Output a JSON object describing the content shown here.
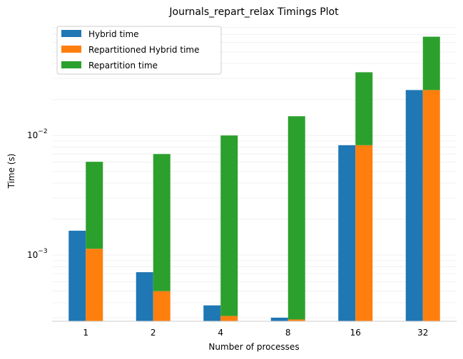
{
  "chart_data": {
    "type": "bar",
    "title": "Journals_repart_relax Timings Plot",
    "xlabel": "Number of processes",
    "ylabel": "Time (s)",
    "yscale": "log",
    "ylim": [
      0.00028,
      0.09
    ],
    "grid": "horizontal minor lines",
    "legend_position": "top-left",
    "categories": [
      "1",
      "2",
      "4",
      "8",
      "16",
      "32"
    ],
    "y_tick_labels": [
      {
        "value": 0.001,
        "base": "10",
        "exp": "−3"
      },
      {
        "value": 0.01,
        "base": "10",
        "exp": "−2"
      }
    ],
    "series": [
      {
        "name": "Hybrid time",
        "color": "#1f77b4",
        "values": [
          0.0016,
          0.00072,
          0.00038,
          0.0003,
          0.0083,
          0.024
        ]
      },
      {
        "name": "Repartitioned Hybrid time",
        "color": "#ff7f0e",
        "values": [
          0.00113,
          0.0005,
          0.00031,
          0.00029,
          0.0083,
          0.024
        ]
      },
      {
        "name": "Repartition time",
        "color": "#2ca02c",
        "values": [
          0.0049,
          0.0065,
          0.0097,
          0.0142,
          0.0255,
          0.043
        ]
      }
    ]
  }
}
